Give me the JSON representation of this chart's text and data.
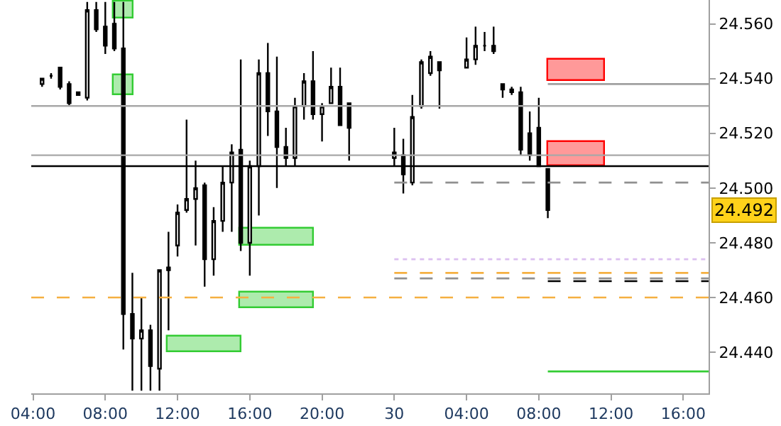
{
  "chart_data": {
    "type": "candlestick",
    "color": "#000000",
    "x": [
      "--01-29T04:30",
      "--01-29T05:00",
      "--01-29T05:30",
      "--01-29T06:00",
      "--01-29T06:30",
      "--01-29T07:00",
      "--01-29T07:30",
      "--01-29T08:00",
      "--01-29T08:30",
      "--01-29T09:00",
      "--01-29T09:30",
      "--01-29T10:00",
      "--01-29T10:30",
      "--01-29T11:00",
      "--01-29T11:30",
      "--01-29T12:00",
      "--01-29T12:30",
      "--01-29T13:00",
      "--01-29T13:30",
      "--01-29T14:00",
      "--01-29T14:30",
      "--01-29T15:00",
      "--01-29T15:30",
      "--01-29T16:00",
      "--01-29T16:30",
      "--01-29T17:00",
      "--01-29T17:30",
      "--01-29T18:00",
      "--01-29T18:30",
      "--01-29T19:00",
      "--01-29T19:30",
      "--01-29T20:00",
      "--01-29T20:30",
      "--01-29T21:00",
      "--01-29T21:30",
      "--01-30T00:00",
      "--01-30T00:30",
      "--01-30T01:00",
      "--01-30T01:30",
      "--01-30T02:00",
      "--01-30T02:30",
      "--01-30T04:00",
      "--01-30T04:30",
      "--01-30T05:00",
      "--01-30T05:30",
      "--01-30T06:00",
      "--01-30T06:30",
      "--01-30T07:00",
      "--01-30T07:30",
      "--01-30T08:00",
      "--01-30T08:30"
    ],
    "ohlc": [
      [
        24.538,
        24.54,
        24.537,
        24.54
      ],
      [
        24.541,
        24.542,
        24.54,
        24.541
      ],
      [
        24.544,
        24.544,
        24.536,
        24.537
      ],
      [
        24.538,
        24.539,
        24.53,
        24.531
      ],
      [
        24.535,
        24.535,
        24.534,
        24.534
      ],
      [
        24.533,
        24.568,
        24.532,
        24.565
      ],
      [
        24.565,
        24.568,
        24.557,
        24.558
      ],
      [
        24.559,
        24.568,
        24.549,
        24.552
      ],
      [
        24.56,
        24.568,
        24.55,
        24.551
      ],
      [
        24.551,
        24.568,
        24.441,
        24.454
      ],
      [
        24.454,
        24.469,
        24.426,
        24.445
      ],
      [
        24.445,
        24.46,
        24.426,
        24.448
      ],
      [
        24.448,
        24.45,
        24.426,
        24.435
      ],
      [
        24.434,
        24.47,
        24.426,
        24.47
      ],
      [
        24.47,
        24.484,
        24.448,
        24.471
      ],
      [
        24.479,
        24.494,
        24.475,
        24.491
      ],
      [
        24.492,
        24.525,
        24.491,
        24.496
      ],
      [
        24.496,
        24.51,
        24.479,
        24.5
      ],
      [
        24.501,
        24.502,
        24.464,
        24.474
      ],
      [
        24.474,
        24.493,
        24.468,
        24.488
      ],
      [
        24.488,
        24.508,
        24.484,
        24.502
      ],
      [
        24.502,
        24.516,
        24.484,
        24.513
      ],
      [
        24.514,
        24.547,
        24.477,
        24.48
      ],
      [
        24.48,
        24.51,
        24.468,
        24.508
      ],
      [
        24.508,
        24.547,
        24.49,
        24.542
      ],
      [
        24.542,
        24.553,
        24.519,
        24.528
      ],
      [
        24.528,
        24.548,
        24.5,
        24.515
      ],
      [
        24.515,
        24.522,
        24.508,
        24.511
      ],
      [
        24.511,
        24.533,
        24.508,
        24.53
      ],
      [
        24.53,
        24.542,
        24.525,
        24.539
      ],
      [
        24.539,
        24.55,
        24.525,
        24.527
      ],
      [
        24.527,
        24.531,
        24.517,
        24.53
      ],
      [
        24.531,
        24.544,
        24.531,
        24.537
      ],
      [
        24.537,
        24.544,
        24.523,
        24.523
      ],
      [
        24.531,
        24.531,
        24.51,
        24.522
      ],
      [
        24.511,
        24.522,
        24.508,
        24.513
      ],
      [
        24.512,
        24.518,
        24.498,
        24.505
      ],
      [
        24.502,
        24.534,
        24.501,
        24.526
      ],
      [
        24.53,
        24.547,
        24.529,
        24.546
      ],
      [
        24.542,
        24.55,
        24.541,
        24.548
      ],
      [
        24.546,
        24.546,
        24.529,
        24.543
      ],
      [
        24.544,
        24.555,
        24.544,
        24.547
      ],
      [
        24.547,
        24.559,
        24.545,
        24.552
      ],
      [
        24.552,
        24.557,
        24.55,
        24.552
      ],
      [
        24.552,
        24.559,
        24.549,
        24.55
      ],
      [
        24.538,
        24.538,
        24.533,
        24.536
      ],
      [
        24.536,
        24.537,
        24.534,
        24.535
      ],
      [
        24.535,
        24.537,
        24.512,
        24.514
      ],
      [
        24.52,
        24.528,
        24.51,
        24.512
      ],
      [
        24.522,
        24.533,
        24.508,
        24.508
      ],
      [
        24.507,
        24.507,
        24.489,
        24.492
      ]
    ],
    "series": [
      {
        "type": "bar",
        "color": "#33cc33",
        "x": [
          "--01-29T09:00",
          "--01-29T13:30",
          "--01-29T17:30"
        ],
        "base": [
          24.562,
          24.44,
          24.479
        ],
        "values": [
          0.006,
          0.006,
          0.006
        ]
      },
      {
        "type": "bar",
        "color": "#33cc33",
        "x": [
          "--01-29T09:00",
          "--01-29T17:30"
        ],
        "base": [
          24.534,
          24.456
        ],
        "values": [
          0.007,
          0.006
        ]
      },
      {
        "type": "bar",
        "color": "#ff0000",
        "x": [
          "--01-30T10:06"
        ],
        "base": [
          24.539
        ],
        "values": [
          0.008
        ]
      },
      {
        "type": "bar",
        "color": "#ff0000",
        "x": [
          "--01-30T10:06"
        ],
        "base": [
          24.508
        ],
        "values": [
          0.009
        ]
      },
      {
        "type": "line",
        "color": "#a0a0a0",
        "line_style": "solid",
        "x": [
          "--01-30T08:30",
          "--01-30T17:24"
        ],
        "values": [
          24.538,
          24.538
        ]
      },
      {
        "type": "line",
        "color": "#909090",
        "line_style": "dashed",
        "x": [
          "--01-30T00:00",
          "--01-30T17:24"
        ],
        "values": [
          24.502,
          24.502
        ]
      },
      {
        "type": "line",
        "color": "#dcc0f0",
        "line_style": "dotted",
        "x": [
          "--01-30T00:00",
          "--01-30T17:24"
        ],
        "values": [
          24.474,
          24.474
        ]
      },
      {
        "type": "line",
        "color": "#f5b041",
        "line_style": "dashed",
        "x": [
          "--01-30T00:00",
          "--01-30T17:24"
        ],
        "values": [
          24.469,
          24.469
        ]
      },
      {
        "type": "line",
        "color": "#909090",
        "line_style": "dashed",
        "x": [
          "--01-30T00:00",
          "--01-30T17:24"
        ],
        "values": [
          24.467,
          24.467
        ]
      },
      {
        "type": "line",
        "color": "#000000",
        "line_style": "dashed",
        "x": [
          "--01-30T08:30",
          "--01-30T17:24"
        ],
        "values": [
          24.466,
          24.466
        ]
      },
      {
        "type": "line",
        "color": "#33cc33",
        "line_style": "solid",
        "x": [
          "--01-30T08:30",
          "--01-30T17:24"
        ],
        "values": [
          24.433,
          24.433
        ]
      }
    ],
    "ref_lines": [
      {
        "axis": "y",
        "value": 24.53,
        "color": "#a8a8a8",
        "line_style": "solid"
      },
      {
        "axis": "y",
        "value": 24.512,
        "color": "#a8a8a8",
        "line_style": "solid"
      },
      {
        "axis": "y",
        "value": 24.508,
        "color": "#000000",
        "line_style": "solid"
      },
      {
        "axis": "y",
        "value": 24.46,
        "color": "#f5b041",
        "line_style": "dashed"
      }
    ],
    "annotations": [
      "24.492"
    ],
    "xlim": [
      "--01-29T03:54",
      "--01-30T17:24"
    ],
    "ylim": [
      24.425,
      24.5687
    ],
    "xticks": [
      {
        "value": "--01-29T04:00",
        "label": "04:00"
      },
      {
        "value": "--01-29T08:00",
        "label": "08:00"
      },
      {
        "value": "--01-29T12:00",
        "label": "12:00"
      },
      {
        "value": "--01-29T16:00",
        "label": "16:00"
      },
      {
        "value": "--01-29T20:00",
        "label": "20:00"
      },
      {
        "value": "--01-30T00:00",
        "label": "30"
      },
      {
        "value": "--01-30T04:00",
        "label": "04:00"
      },
      {
        "value": "--01-30T08:00",
        "label": "08:00"
      },
      {
        "value": "--01-30T12:00",
        "label": "12:00"
      },
      {
        "value": "--01-30T16:00",
        "label": "16:00"
      }
    ],
    "yticks": [
      {
        "value": 24.44,
        "label": "24.440"
      },
      {
        "value": 24.46,
        "label": "24.460"
      },
      {
        "value": 24.48,
        "label": "24.480"
      },
      {
        "value": 24.5,
        "label": "24.500"
      },
      {
        "value": 24.52,
        "label": "24.520"
      },
      {
        "value": 24.54,
        "label": "24.540"
      },
      {
        "value": 24.56,
        "label": "24.560"
      }
    ]
  }
}
